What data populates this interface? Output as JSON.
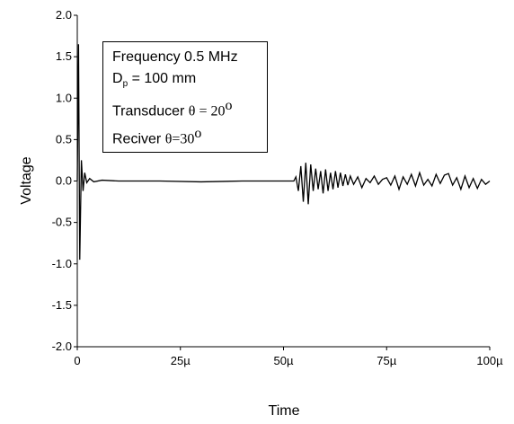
{
  "chart_data": {
    "type": "line",
    "xlabel": "Time",
    "ylabel": "Voltage",
    "xlim": [
      0,
      100
    ],
    "ylim": [
      -2.0,
      2.0
    ],
    "x_ticks": [
      0,
      25,
      50,
      75,
      100
    ],
    "x_tick_labels": [
      "0",
      "25µ",
      "50µ",
      "75µ",
      "100µ"
    ],
    "y_ticks": [
      2.0,
      1.5,
      1.0,
      0.5,
      0.0,
      -0.5,
      -1.0,
      -1.5,
      -2.0
    ],
    "y_tick_labels": [
      "2.0",
      "1.5",
      "1.0",
      "0.5",
      "0.0",
      "-0.5",
      "-1.0",
      "-1.5",
      "-2.0"
    ],
    "grid": false,
    "legend_placement": "top-left",
    "series": [
      {
        "x": [
          0,
          0.3,
          0.6,
          1.0,
          1.4,
          1.8,
          2.3,
          3,
          4,
          6,
          10,
          20,
          30,
          40,
          47,
          52.5,
          53,
          53.6,
          54.2,
          54.8,
          55.4,
          56,
          56.6,
          57.2,
          57.8,
          58.4,
          59,
          59.6,
          60.2,
          60.8,
          61.4,
          62,
          62.6,
          63.2,
          63.8,
          64.4,
          65,
          65.6,
          66.2,
          67,
          68,
          69,
          70,
          71,
          72,
          73,
          74,
          75,
          76,
          77,
          78,
          79,
          80,
          81,
          82,
          83,
          84,
          85,
          86,
          87,
          88,
          89,
          90,
          91,
          92,
          93,
          94,
          95,
          96,
          97,
          98,
          99,
          100
        ],
        "y": [
          0,
          1.65,
          -0.95,
          0.25,
          -0.12,
          0.1,
          -0.02,
          0.03,
          -0.01,
          0.01,
          0,
          0,
          -0.01,
          0,
          0,
          0,
          0.05,
          -0.12,
          0.18,
          -0.25,
          0.22,
          -0.28,
          0.2,
          -0.12,
          0.15,
          -0.1,
          0.12,
          -0.15,
          0.14,
          -0.12,
          0.1,
          -0.1,
          0.12,
          -0.08,
          0.1,
          -0.06,
          0.08,
          -0.05,
          0.06,
          -0.04,
          0.05,
          -0.08,
          0.03,
          -0.02,
          0.06,
          -0.04,
          0.02,
          0.04,
          -0.05,
          0.06,
          -0.1,
          0.05,
          -0.04,
          0.08,
          -0.06,
          0.1,
          -0.05,
          0.02,
          -0.06,
          0.08,
          -0.03,
          0.07,
          0.09,
          -0.05,
          0.04,
          -0.1,
          0.06,
          -0.08,
          0.03,
          -0.09,
          0.02,
          -0.04,
          0
        ]
      }
    ]
  },
  "legend": {
    "frequency": "Frequency 0.5 MHz",
    "dp_main": "D",
    "dp_sub": "p",
    "dp_value": " = 100 mm",
    "transducer_label": "Transducer ",
    "transducer_math": "θ = 20",
    "transducer_sup": "o",
    "receiver_label": "Reciver ",
    "receiver_math": "θ=30",
    "receiver_sup": "o"
  },
  "colors": {
    "line": "#000000",
    "axis": "#000000",
    "background": "#ffffff"
  }
}
